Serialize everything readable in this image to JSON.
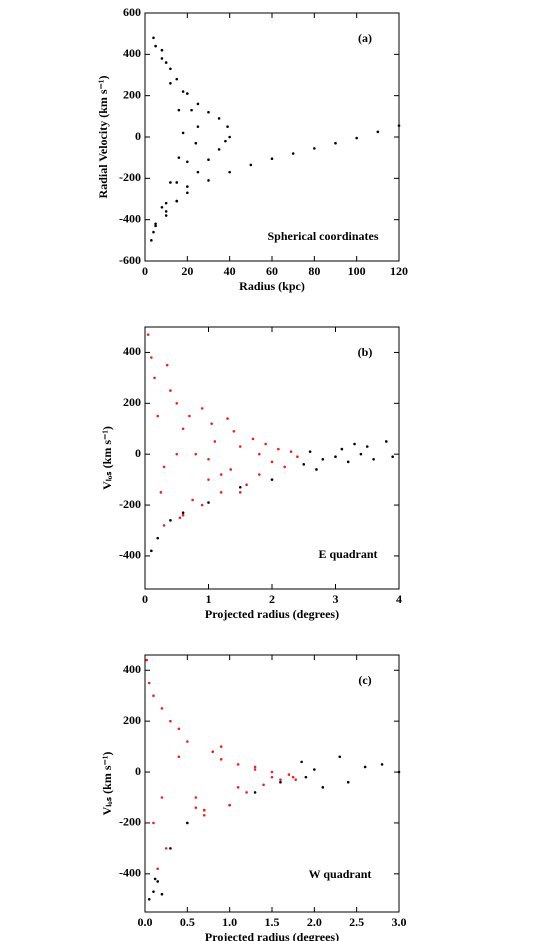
{
  "chart_data": [
    {
      "type": "scatter",
      "label": "(a)",
      "annotation": "Spherical coordinates",
      "xlabel": "Radius (kpc)",
      "ylabel": "Radial Velocity (km s⁻¹)",
      "xlim": [
        0,
        120
      ],
      "ylim": [
        -600,
        600
      ],
      "xticks": [
        0,
        20,
        40,
        60,
        80,
        100,
        120
      ],
      "yticks": [
        -600,
        -400,
        -200,
        0,
        200,
        400,
        600
      ],
      "series": [
        {
          "color": "#000000",
          "x": [
            3,
            5,
            10,
            15,
            20,
            30,
            40,
            50,
            60,
            70,
            80,
            90,
            100,
            110,
            120,
            5,
            10,
            15,
            20,
            25,
            30,
            35,
            39,
            40,
            38,
            35,
            30,
            25,
            20,
            15,
            10,
            8,
            12,
            18,
            22,
            25,
            24,
            20,
            15,
            10,
            5,
            4,
            8,
            12,
            16,
            18,
            16,
            12,
            8,
            4
          ],
          "y": [
            -500,
            -430,
            -360,
            -310,
            -270,
            -210,
            -170,
            -135,
            -105,
            -80,
            -55,
            -30,
            -5,
            25,
            55,
            440,
            360,
            280,
            210,
            160,
            120,
            90,
            50,
            0,
            -20,
            -60,
            -110,
            -170,
            -240,
            -310,
            -380,
            420,
            330,
            220,
            130,
            50,
            -30,
            -120,
            -220,
            -320,
            -420,
            480,
            380,
            260,
            130,
            20,
            -100,
            -220,
            -340,
            -460
          ]
        }
      ]
    },
    {
      "type": "scatter",
      "label": "(b)",
      "annotation": "E quadrant",
      "xlabel": "Projected radius (degrees)",
      "ylabel": "Vₗₒₛ (km s⁻¹)",
      "xlim": [
        0,
        4
      ],
      "ylim": [
        -530,
        500
      ],
      "xticks": [
        0,
        1,
        2,
        3,
        4
      ],
      "yticks": [
        -400,
        -200,
        0,
        200,
        400
      ],
      "series": [
        {
          "color": "#000000",
          "x": [
            0.1,
            0.2,
            0.4,
            0.6,
            1.0,
            1.5,
            2.0,
            2.5,
            2.6,
            2.8,
            3.0,
            3.1,
            3.2,
            3.4,
            3.5,
            3.6,
            3.8,
            3.9,
            2.7,
            3.3
          ],
          "y": [
            -380,
            -330,
            -260,
            -230,
            -190,
            -130,
            -100,
            -40,
            10,
            -20,
            -10,
            20,
            -30,
            0,
            30,
            -20,
            50,
            -10,
            -60,
            40
          ]
        },
        {
          "color": "#e8231f",
          "x": [
            0.05,
            0.1,
            0.15,
            0.2,
            0.25,
            0.3,
            0.35,
            0.4,
            0.5,
            0.55,
            0.6,
            0.7,
            0.75,
            0.8,
            0.9,
            1.0,
            1.05,
            1.1,
            1.2,
            1.3,
            1.35,
            1.4,
            1.5,
            1.6,
            1.7,
            1.8,
            1.9,
            2.0,
            2.1,
            2.2,
            2.3,
            2.4,
            0.3,
            0.6,
            0.9,
            1.2,
            1.5,
            1.8,
            0.5,
            1.0
          ],
          "y": [
            470,
            380,
            300,
            150,
            -150,
            -280,
            350,
            250,
            200,
            -250,
            100,
            150,
            -180,
            0,
            180,
            -100,
            120,
            50,
            -150,
            140,
            -60,
            90,
            30,
            -120,
            60,
            -80,
            40,
            -30,
            20,
            -50,
            10,
            -10,
            -50,
            -240,
            -200,
            -80,
            -150,
            0,
            0,
            -20
          ]
        }
      ]
    },
    {
      "type": "scatter",
      "label": "(c)",
      "annotation": "W quadrant",
      "xlabel": "Projected radius (degrees)",
      "ylabel": "Vₗₒₛ (km s⁻¹)",
      "xlim": [
        0,
        3
      ],
      "ylim": [
        -550,
        460
      ],
      "xticks": [
        {
          "value": 0,
          "label": "0.0"
        },
        0.5,
        {
          "value": 1,
          "label": "1.0"
        },
        1.5,
        {
          "value": 2,
          "label": "2.0"
        },
        2.5,
        {
          "value": 3,
          "label": "3.0"
        }
      ],
      "yticks": [
        -400,
        -200,
        0,
        200,
        400
      ],
      "series": [
        {
          "color": "#000000",
          "x": [
            0.05,
            0.1,
            0.15,
            0.2,
            0.3,
            0.5,
            0.7,
            1.0,
            1.3,
            1.6,
            1.9,
            2.0,
            2.1,
            2.3,
            2.4,
            2.6,
            2.8,
            3.0,
            0.12,
            1.85
          ],
          "y": [
            -500,
            -470,
            -430,
            -480,
            -300,
            -200,
            -150,
            -130,
            -80,
            -40,
            -20,
            10,
            -60,
            60,
            -40,
            20,
            30,
            0,
            -420,
            40
          ]
        },
        {
          "color": "#e8231f",
          "x": [
            0.02,
            0.05,
            0.1,
            0.15,
            0.2,
            0.3,
            0.4,
            0.5,
            0.6,
            0.7,
            0.8,
            0.9,
            1.0,
            1.1,
            1.2,
            1.3,
            1.4,
            1.5,
            1.6,
            1.7,
            1.75,
            1.78,
            0.1,
            0.2,
            0.4,
            0.7,
            0.9,
            1.1,
            1.3,
            1.5,
            0.25,
            0.6
          ],
          "y": [
            440,
            350,
            300,
            -380,
            250,
            200,
            170,
            120,
            -100,
            -170,
            80,
            50,
            -130,
            30,
            -80,
            10,
            -50,
            0,
            -30,
            -10,
            -20,
            -30,
            -200,
            -100,
            60,
            -150,
            100,
            -60,
            20,
            -20,
            -300,
            -140
          ]
        }
      ]
    }
  ]
}
